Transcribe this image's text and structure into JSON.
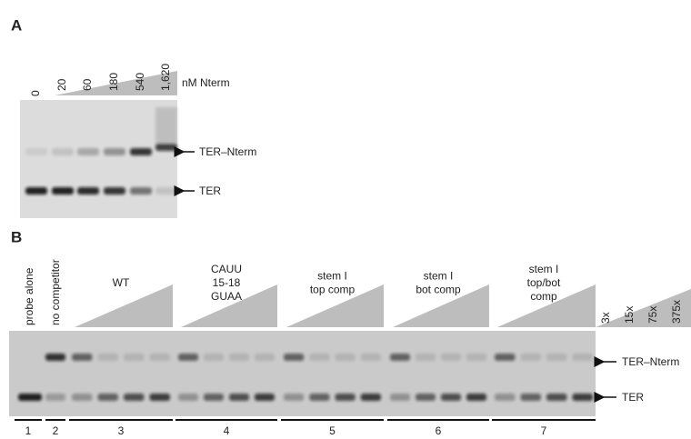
{
  "panel_a": {
    "label": "A",
    "concentrations": [
      "0",
      "20",
      "60",
      "180",
      "540",
      "1,620"
    ],
    "unit": "nM Nterm",
    "arrows": [
      "TER–Nterm",
      "TER"
    ]
  },
  "panel_b": {
    "label": "B",
    "lane_headers": [
      "probe alone",
      "no competitor"
    ],
    "groups": [
      {
        "lines": [
          "WT"
        ]
      },
      {
        "lines": [
          "CAUU",
          "15-18",
          "GUAA"
        ]
      },
      {
        "lines": [
          "stem I",
          "top comp"
        ]
      },
      {
        "lines": [
          "stem I",
          "bot comp"
        ]
      },
      {
        "lines": [
          "stem I",
          "top/bot",
          "comp"
        ]
      }
    ],
    "ratios": [
      "3x",
      "15x",
      "75x",
      "375x"
    ],
    "arrows": [
      "TER–Nterm",
      "TER"
    ],
    "lane_numbers": [
      "1",
      "2",
      "3",
      "4",
      "5",
      "6",
      "7"
    ]
  }
}
